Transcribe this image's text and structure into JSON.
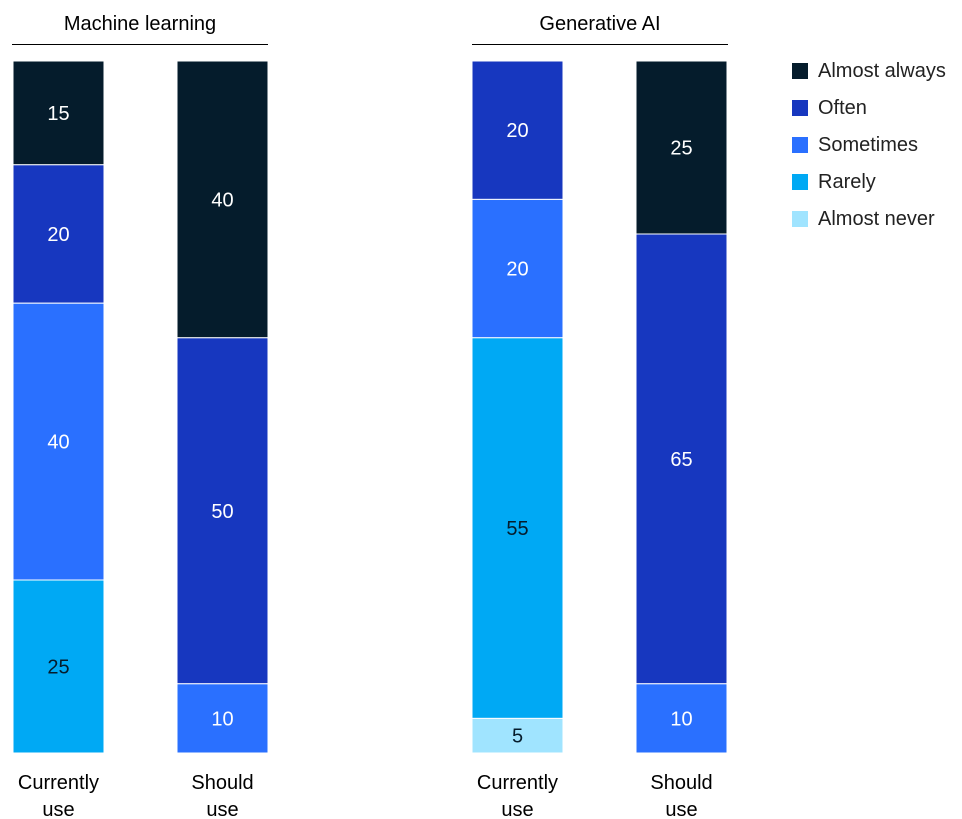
{
  "chart_data": {
    "type": "bar",
    "stacked": true,
    "normalized_to": 100,
    "colors": {
      "Almost always": "#051C2C",
      "Often": "#1737BF",
      "Sometimes": "#2A70FF",
      "Rarely": "#00A9F4",
      "Almost never": "#A0E4FF"
    },
    "legend": {
      "position": "right",
      "items": [
        "Almost always",
        "Often",
        "Sometimes",
        "Rarely",
        "Almost never"
      ]
    },
    "panels": [
      {
        "title": "Machine learning",
        "bars": [
          {
            "label": [
              "Currently",
              "use"
            ],
            "segments": [
              {
                "category": "Almost always",
                "value": 15
              },
              {
                "category": "Often",
                "value": 20
              },
              {
                "category": "Sometimes",
                "value": 40
              },
              {
                "category": "Rarely",
                "value": 25
              }
            ]
          },
          {
            "label": [
              "Should",
              "use"
            ],
            "segments": [
              {
                "category": "Almost always",
                "value": 40
              },
              {
                "category": "Often",
                "value": 50
              },
              {
                "category": "Sometimes",
                "value": 10
              }
            ]
          }
        ]
      },
      {
        "title": "Generative AI",
        "bars": [
          {
            "label": [
              "Currently",
              "use"
            ],
            "segments": [
              {
                "category": "Often",
                "value": 20
              },
              {
                "category": "Sometimes",
                "value": 20
              },
              {
                "category": "Rarely",
                "value": 55
              },
              {
                "category": "Almost never",
                "value": 5
              }
            ]
          },
          {
            "label": [
              "Should",
              "use"
            ],
            "segments": [
              {
                "category": "Almost always",
                "value": 25
              },
              {
                "category": "Often",
                "value": 65
              },
              {
                "category": "Sometimes",
                "value": 10
              }
            ]
          }
        ]
      }
    ]
  }
}
